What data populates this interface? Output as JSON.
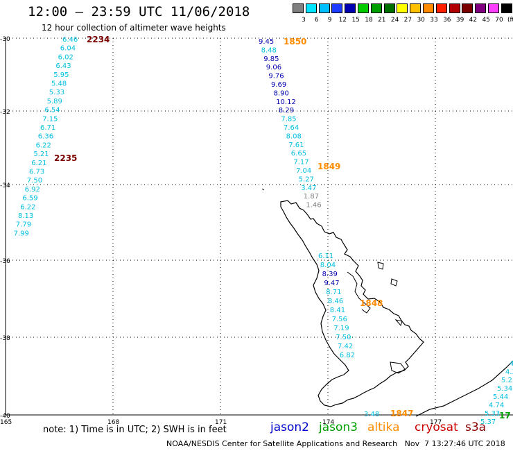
{
  "title": "12:00 – 23:59 UTC 11/06/2018",
  "subtitle": "12 hour collection of altimeter wave heights",
  "colorbar": {
    "colors": [
      "#808080",
      "#00e5ff",
      "#00bfff",
      "#1e3cff",
      "#0000b0",
      "#00cc00",
      "#00a000",
      "#007000",
      "#ffff00",
      "#ffc000",
      "#ff8c00",
      "#ff2000",
      "#b00000",
      "#7a0000",
      "#800080",
      "#ff40ff",
      "#000000"
    ],
    "labels": [
      "3",
      "6",
      "9",
      "12",
      "15",
      "18",
      "21",
      "24",
      "27",
      "30",
      "33",
      "36",
      "39",
      "42",
      "45",
      "70",
      "(ft)"
    ]
  },
  "lat_labels": [
    "-30",
    "-32",
    "-34",
    "-36",
    "-38",
    "-40"
  ],
  "lon_labels": [
    "165",
    "168",
    "171",
    "174",
    "177"
  ],
  "track_left": {
    "values": [
      "6.46",
      "6.04",
      "6.02",
      "6.43",
      "5.95",
      "5.48",
      "5.33",
      "5.89",
      "6.54",
      "7.15",
      "6.71",
      "6.36",
      "6.22",
      "5.21",
      "6.21",
      "6.73",
      "7.50",
      "6.92",
      "6.59",
      "6.22",
      "8.13",
      "7.79",
      "7.99"
    ],
    "time_top": "2234",
    "time_mid": "2235"
  },
  "track_middle": {
    "values": [
      "9.45",
      "8.48",
      "9.85",
      "9.06",
      "9.76",
      "9.69",
      "8.90",
      "10.12",
      "8.29",
      "7.85",
      "7.64",
      "8.08",
      "7.61",
      "6.65",
      "7.17",
      "7.04",
      "5.27",
      "3.47",
      "1.87",
      "1.46"
    ],
    "time_top": "1850",
    "time_mid": "1849"
  },
  "track_lower": {
    "values": [
      "6.11",
      "8.04",
      "8.39",
      "9.47",
      "8.71",
      "8.46",
      "8.41",
      "7.56",
      "7.19",
      "7.50",
      "7.42",
      "6.82"
    ],
    "time": "1848"
  },
  "track_bottom": {
    "value": "3.48",
    "time": "1847"
  },
  "track_right": {
    "values": [
      "4",
      "4.3",
      "5.2",
      "5.34",
      "5.44",
      "4.74",
      "5.33",
      "5.37"
    ],
    "time": "17"
  },
  "footer_note": "note: 1) Time is in UTC; 2) SWH is in feet",
  "satellites": [
    {
      "name": "jason2",
      "color": "#0000cc"
    },
    {
      "name": "jason3",
      "color": "#00a000"
    },
    {
      "name": "altika",
      "color": "#ff8c00"
    },
    {
      "name": "cryosat",
      "color": "#cc0000"
    },
    {
      "name": "s3a",
      "color": "#8b0000"
    }
  ],
  "credit": "NOAA/NESDIS Center for Satellite Applications and Research   Nov  7 13:27:46 UTC 2018",
  "colors": {
    "cyan": "#00bfe0",
    "navy": "#0000b0",
    "orange": "#ff8c00",
    "darkred": "#7a0000",
    "gray": "#808080"
  }
}
